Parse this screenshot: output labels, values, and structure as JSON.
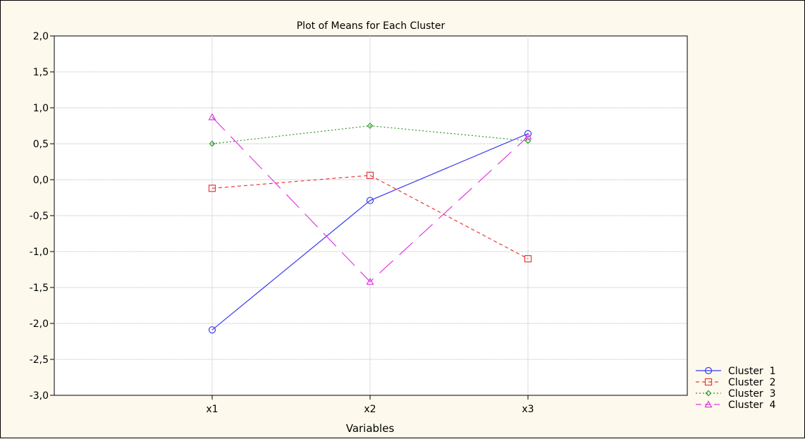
{
  "chart_data": {
    "type": "line",
    "title": "Plot of Means for Each Cluster",
    "xlabel": "Variables",
    "ylabel": "",
    "categories": [
      "x1",
      "x2",
      "x3"
    ],
    "ylim": [
      -3.0,
      2.0
    ],
    "yticks": [
      2.0,
      1.5,
      1.0,
      0.5,
      0.0,
      -0.5,
      -1.0,
      -1.5,
      -2.0,
      -2.5,
      -3.0
    ],
    "ytick_labels": [
      "2,0",
      "1,5",
      "1,0",
      "0,5",
      "0,0",
      "-0,5",
      "-1,0",
      "-1,5",
      "-2,0",
      "-2,5",
      "-3,0"
    ],
    "grid": true,
    "legend_position": "bottom-right",
    "series": [
      {
        "name": "Cluster  1",
        "values": [
          -2.09,
          -0.29,
          0.64
        ],
        "color": "#3a3af0",
        "marker": "circle",
        "dash": ""
      },
      {
        "name": "Cluster  2",
        "values": [
          -0.12,
          0.06,
          -1.1
        ],
        "color": "#e83a3a",
        "marker": "square",
        "dash": "5,4"
      },
      {
        "name": "Cluster  3",
        "values": [
          0.5,
          0.75,
          0.54
        ],
        "color": "#2a9a2a",
        "marker": "diamond",
        "dash": "2,3"
      },
      {
        "name": "Cluster  4",
        "values": [
          0.87,
          -1.42,
          0.6
        ],
        "color": "#e03ae0",
        "marker": "triangle",
        "dash": "26,12"
      }
    ]
  }
}
